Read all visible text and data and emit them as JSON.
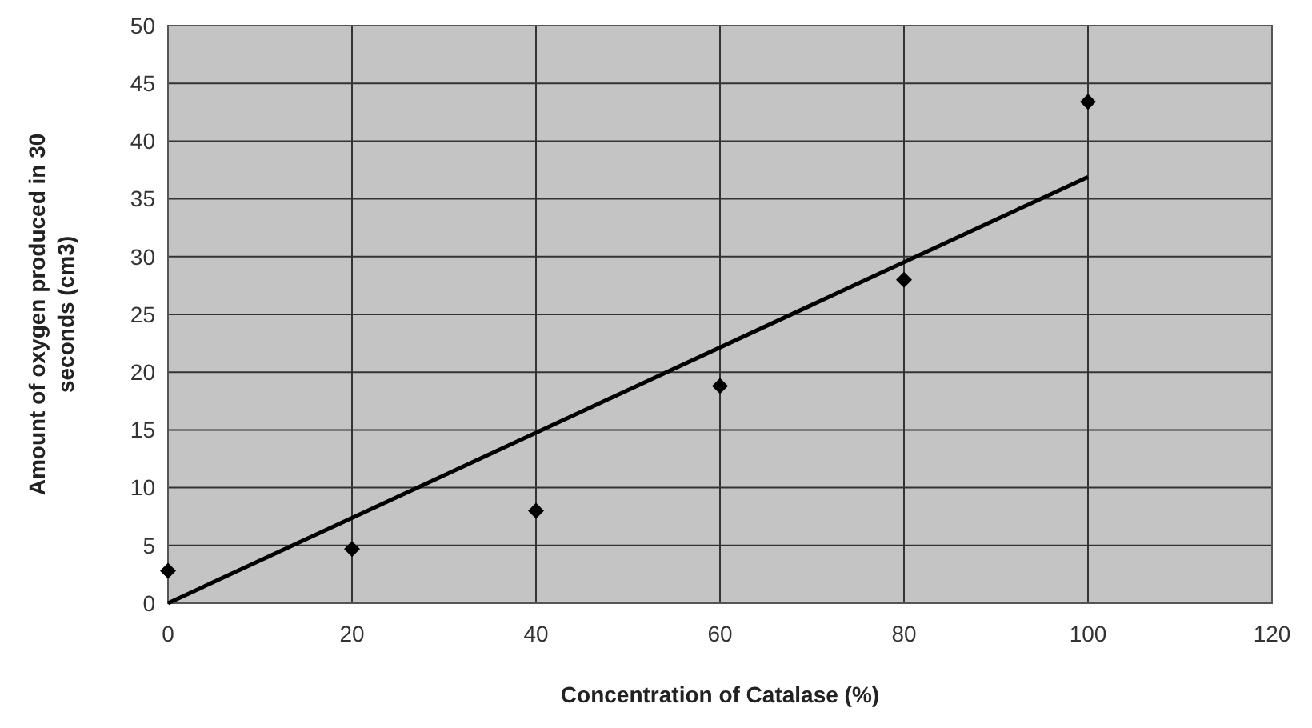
{
  "chart_data": {
    "type": "scatter",
    "xlabel": "Concentration of Catalase (%)",
    "ylabel": "Amount of oxygen produced in 30 seconds (cm3)",
    "series": [
      {
        "color": "#000000",
        "marker": "diamond",
        "x": [
          0,
          20,
          40,
          60,
          80,
          100
        ],
        "values": [
          2.8,
          4.7,
          8,
          18.8,
          28,
          43.4
        ]
      },
      {
        "type": "line",
        "color": "#000000",
        "x": [
          0,
          100
        ],
        "values": [
          0,
          36.9
        ]
      }
    ],
    "xlim": [
      0,
      120
    ],
    "xticks": [
      0,
      20,
      40,
      60,
      80,
      100,
      120
    ],
    "ylim": [
      0,
      50
    ],
    "yticks": [
      0,
      5,
      10,
      15,
      20,
      25,
      30,
      35,
      40,
      45,
      50
    ],
    "grid": true
  }
}
